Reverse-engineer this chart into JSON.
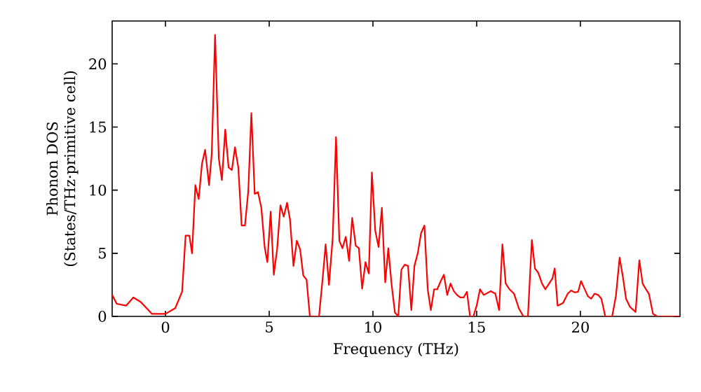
{
  "chart_data": {
    "type": "line",
    "xlabel": "Frequency (THz)",
    "ylabel": "Phonon DOS (States/THz·primitive cell)",
    "xlim": [
      -2.57,
      24.8
    ],
    "ylim": [
      0,
      23.4
    ],
    "xticks": [
      0,
      5,
      10,
      15,
      20
    ],
    "yticks": [
      0,
      5,
      10,
      15,
      20
    ],
    "grid": false,
    "marker": "none",
    "line_style": "solid",
    "series": [
      {
        "color": "#ff0000",
        "x": [
          -2.57,
          -2.35,
          -1.9,
          -1.55,
          -1.2,
          -0.65,
          0,
          0.47,
          0.8,
          0.97,
          1.15,
          1.28,
          1.44,
          1.6,
          1.76,
          1.91,
          2.1,
          2.23,
          2.39,
          2.57,
          2.72,
          2.88,
          3.04,
          3.2,
          3.35,
          3.51,
          3.67,
          3.83,
          3.99,
          4.14,
          4.3,
          4.46,
          4.62,
          4.78,
          4.91,
          5.07,
          5.22,
          5.38,
          5.54,
          5.7,
          5.86,
          6.0,
          6.17,
          6.33,
          6.49,
          6.64,
          6.8,
          6.96,
          7.28,
          7.4,
          7.57,
          7.72,
          7.88,
          8.06,
          8.22,
          8.38,
          8.53,
          8.69,
          8.85,
          9.0,
          9.17,
          9.32,
          9.48,
          9.64,
          9.8,
          9.95,
          10.11,
          10.27,
          10.43,
          10.59,
          10.74,
          10.9,
          11.06,
          11.22,
          11.37,
          11.53,
          11.69,
          11.85,
          12.0,
          12.16,
          12.32,
          12.48,
          12.64,
          12.79,
          12.95,
          13.1,
          13.27,
          13.42,
          13.58,
          13.74,
          13.9,
          14.05,
          14.21,
          14.37,
          14.53,
          14.68,
          14.84,
          15.0,
          15.16,
          15.34,
          15.68,
          15.9,
          16.08,
          16.24,
          16.4,
          16.58,
          16.8,
          17.03,
          17.25,
          17.47,
          17.66,
          17.81,
          17.97,
          18.15,
          18.31,
          18.49,
          18.65,
          18.76,
          18.9,
          19.16,
          19.39,
          19.55,
          19.73,
          19.89,
          20.03,
          20.18,
          20.36,
          20.52,
          20.68,
          20.86,
          21.01,
          21.2,
          21.53,
          21.71,
          21.89,
          22.05,
          22.2,
          22.39,
          22.66,
          22.84,
          23.0,
          23.16,
          23.3,
          23.5,
          23.7,
          24.8
        ],
        "values": [
          1.7,
          1.0,
          0.85,
          1.5,
          1.15,
          0.2,
          0.2,
          0.65,
          1.95,
          6.4,
          6.4,
          5.0,
          10.4,
          9.3,
          12.1,
          13.2,
          10.4,
          12.9,
          22.3,
          12.5,
          10.8,
          14.8,
          11.8,
          11.6,
          13.4,
          11.8,
          7.2,
          7.2,
          9.9,
          16.1,
          9.7,
          9.85,
          8.6,
          5.5,
          4.3,
          8.3,
          3.3,
          5.3,
          8.8,
          7.9,
          9.0,
          7.7,
          4.0,
          6.0,
          5.3,
          3.25,
          2.9,
          0,
          0,
          0,
          2.9,
          5.7,
          2.5,
          6.2,
          14.2,
          6.0,
          5.4,
          6.3,
          4.4,
          7.8,
          5.6,
          5.4,
          2.2,
          4.3,
          3.4,
          11.4,
          6.8,
          5.5,
          8.6,
          2.7,
          5.4,
          2.5,
          0.3,
          0,
          3.7,
          4.1,
          4.0,
          0.5,
          4.0,
          5.0,
          6.6,
          7.2,
          2.15,
          0.5,
          2.15,
          2.15,
          2.8,
          3.3,
          1.7,
          2.6,
          2.0,
          1.7,
          1.5,
          1.5,
          1.95,
          0,
          0,
          0.85,
          2.15,
          1.7,
          2.0,
          1.8,
          0.5,
          5.7,
          2.6,
          2.15,
          1.8,
          0.65,
          0,
          0,
          6.05,
          3.8,
          3.45,
          2.6,
          2.15,
          2.6,
          3.0,
          3.8,
          0.85,
          1.05,
          1.8,
          2.05,
          1.9,
          1.95,
          2.8,
          2.25,
          1.6,
          1.4,
          1.8,
          1.7,
          1.4,
          0,
          0,
          1.6,
          4.65,
          3.1,
          1.4,
          0.75,
          0.35,
          4.45,
          2.6,
          2.15,
          1.8,
          0.2,
          0,
          0
        ]
      }
    ]
  }
}
